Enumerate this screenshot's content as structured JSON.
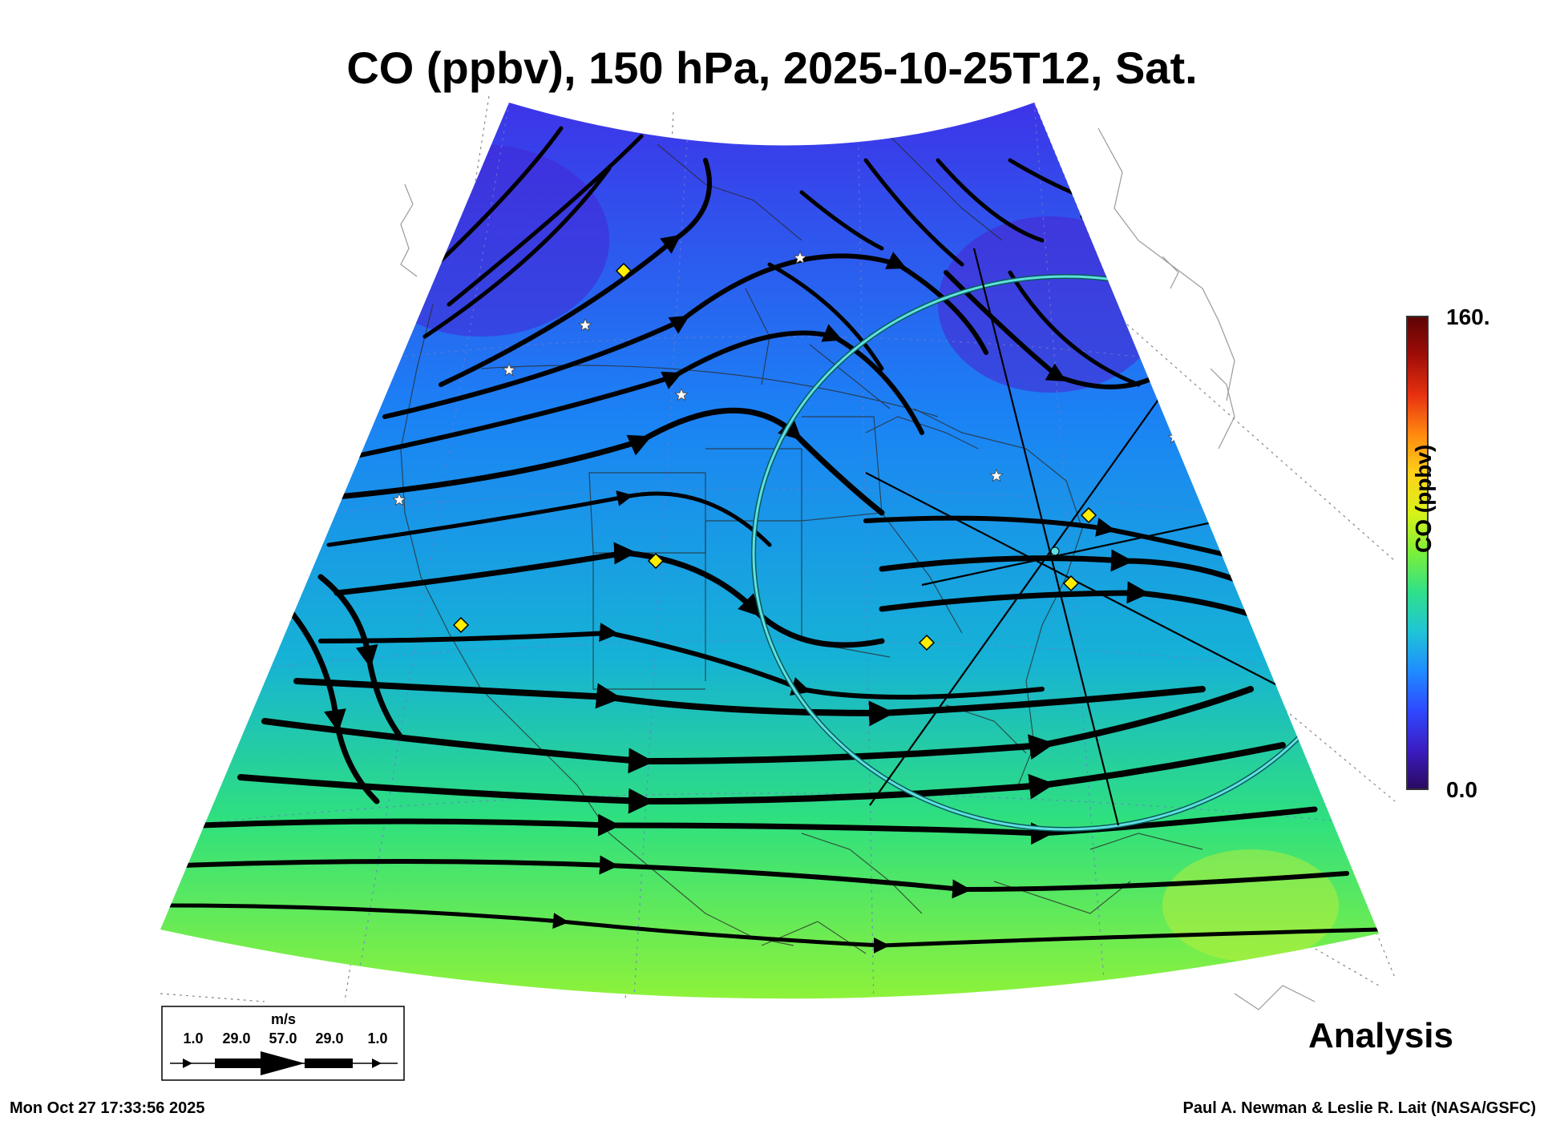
{
  "title": "CO (ppbv), 150 hPa, 2025-10-25T12, Sat.",
  "analysis_label": "Analysis",
  "timestamp": "Mon Oct 27 17:33:56 2025",
  "credit": "Paul A. Newman & Leslie R. Lait (NASA/GSFC)",
  "colorbar": {
    "label": "CO (ppbv)",
    "max_label": "160.",
    "min_label": "0.0",
    "colors": [
      "#2a0a5e",
      "#3b1cc2",
      "#2f49ff",
      "#1f8cff",
      "#1fc4d6",
      "#2fe08a",
      "#7bef3a",
      "#d8f21a",
      "#ffd21a",
      "#ff8a10",
      "#e83210",
      "#a00d08",
      "#5c0404"
    ]
  },
  "wind_key": {
    "unit": "m/s",
    "labels": [
      "1.0",
      "29.0",
      "57.0",
      "29.0",
      "1.0"
    ]
  },
  "field_colors": {
    "north": "#3d34e8",
    "mid": "#1b82f5",
    "central": "#16b2d6",
    "south": "#2fe07e",
    "far_south": "#8ef23a"
  },
  "marker_colors": {
    "diamond": "#ffee00",
    "star": "#ffffff",
    "ring": "#4fd4d4"
  }
}
